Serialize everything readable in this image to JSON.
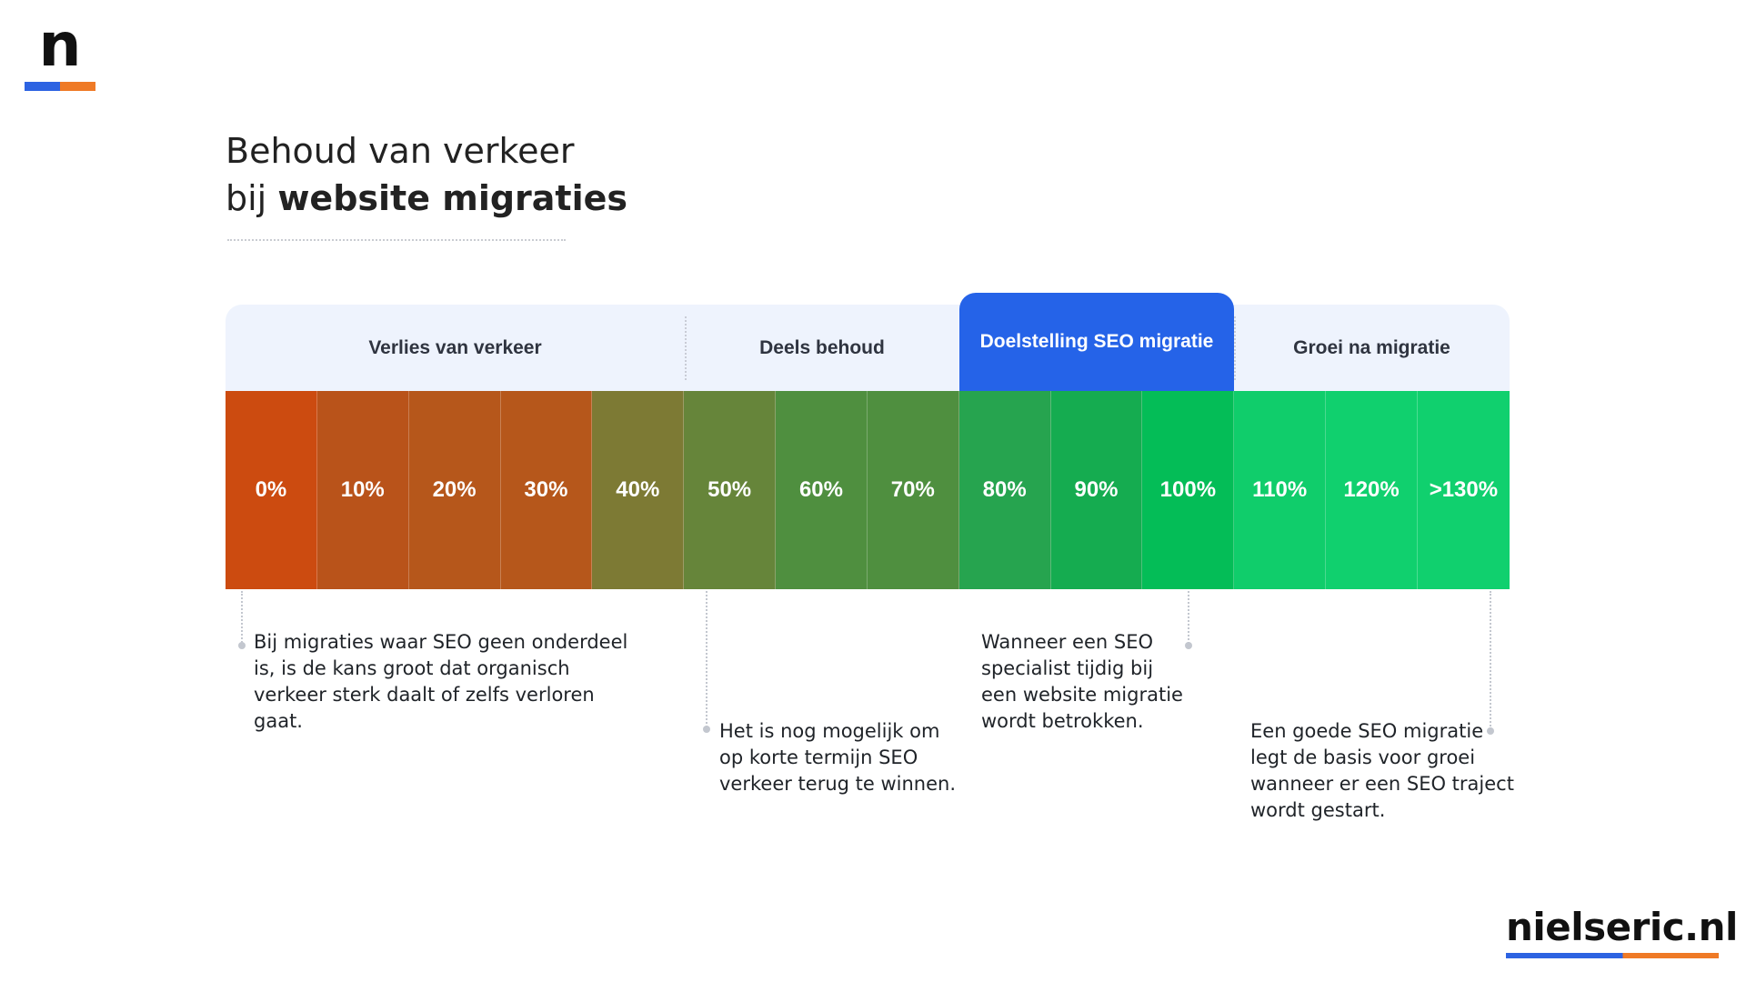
{
  "logo": {
    "letter": "n"
  },
  "title": {
    "line1": "Behoud van verkeer",
    "line2_prefix": "bij ",
    "line2_bold": "website migraties"
  },
  "segments": [
    {
      "label": "Verlies van verkeer",
      "active": false
    },
    {
      "label": "Deels behoud",
      "active": false
    },
    {
      "label": "Doelstelling SEO migratie",
      "active": true
    },
    {
      "label": "Groei na migratie",
      "active": false
    }
  ],
  "scale": [
    {
      "label": "0%",
      "color": "#cc4b10"
    },
    {
      "label": "10%",
      "color": "#b9531a"
    },
    {
      "label": "20%",
      "color": "#b6571b"
    },
    {
      "label": "30%",
      "color": "#b6571b"
    },
    {
      "label": "40%",
      "color": "#7d7a34"
    },
    {
      "label": "50%",
      "color": "#66853a"
    },
    {
      "label": "60%",
      "color": "#4f8f3f"
    },
    {
      "label": "70%",
      "color": "#4f8f3f"
    },
    {
      "label": "80%",
      "color": "#26a44f"
    },
    {
      "label": "90%",
      "color": "#15ac50"
    },
    {
      "label": "100%",
      "color": "#04bd57"
    },
    {
      "label": "110%",
      "color": "#10cd6b"
    },
    {
      "label": "120%",
      "color": "#10d06e"
    },
    {
      "label": ">130%",
      "color": "#10d06e"
    }
  ],
  "notes": [
    {
      "text": "Bij migraties waar SEO  geen onderdeel is, is de kans groot dat organisch verkeer sterk daalt of zelfs verloren gaat."
    },
    {
      "text": "Het is nog mogelijk om op korte termijn SEO verkeer terug te winnen."
    },
    {
      "text": "Wanneer een SEO specialist tijdig bij een website migratie wordt betrokken."
    },
    {
      "text": "Een goede SEO migratie legt de basis voor groei wanneer er een SEO traject wordt gestart."
    }
  ],
  "brand": {
    "text": "nielseric.nl"
  },
  "colors": {
    "accent_blue": "#2563e8",
    "accent_orange": "#ef7a26",
    "header_bg": "#eef3fd"
  }
}
